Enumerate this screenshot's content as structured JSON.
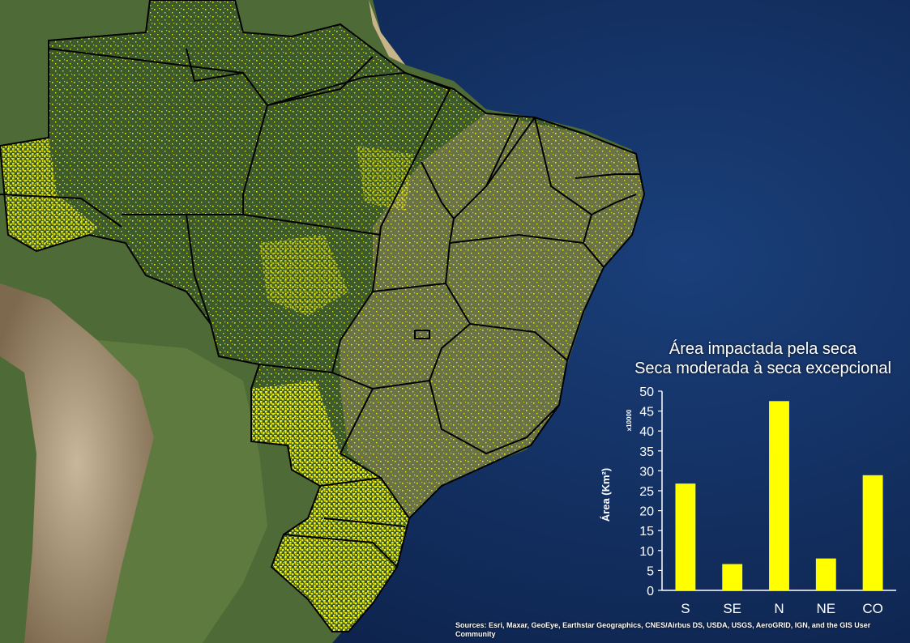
{
  "chart_data": {
    "type": "bar",
    "title": "Área impactada pela seca",
    "subtitle": "Seca moderada à seca excepcional",
    "ylabel": "Área (Km²)",
    "y_multiplier": "x10000",
    "categories": [
      "S",
      "SE",
      "N",
      "NE",
      "CO"
    ],
    "values": [
      26.8,
      6.6,
      47.5,
      8.0,
      28.9
    ],
    "ylim": [
      0,
      50
    ],
    "yticks": [
      0,
      5,
      10,
      15,
      20,
      25,
      30,
      35,
      40,
      45,
      50
    ],
    "bar_color": "#ffff00",
    "grid": false
  },
  "map": {
    "ocean_color": "#123264",
    "land_color": "#5a6a3a",
    "forest_color": "#2f4a24",
    "drought_color": "#ffff1a",
    "boundary_color": "#000000"
  },
  "attribution": "Sources: Esri, Maxar, GeoEye, Earthstar Geographics, CNES/Airbus DS, USDA, USGS, AeroGRID, IGN, and the GIS User Community"
}
